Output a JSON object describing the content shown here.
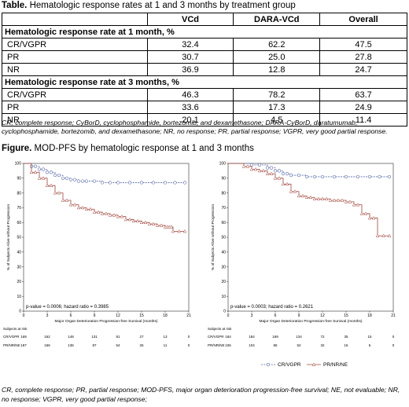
{
  "table": {
    "title_bold": "Table.",
    "title_text": " Hematologic response rates at 1 and 3 months by treatment group",
    "columns": [
      "",
      "VCd",
      "DARA-VCd",
      "Overall"
    ],
    "sections": [
      {
        "heading": "Hematologic response rate at 1 month, %",
        "rows": [
          {
            "label": "CR/VGPR",
            "vcd": "32.4",
            "dara": "62.2",
            "overall": "47.5"
          },
          {
            "label": "PR",
            "vcd": "30.7",
            "dara": "25.0",
            "overall": "27.8"
          },
          {
            "label": "NR",
            "vcd": "36.9",
            "dara": "12.8",
            "overall": "24.7"
          }
        ]
      },
      {
        "heading": "Hematologic response rate at 3 months, %",
        "rows": [
          {
            "label": "CR/VGPR",
            "vcd": "46.3",
            "dara": "78.2",
            "overall": "63.7"
          },
          {
            "label": "PR",
            "vcd": "33.6",
            "dara": "17.3",
            "overall": "24.9"
          },
          {
            "label": "NR",
            "vcd": "20.1",
            "dara": "4.5",
            "overall": "11.4"
          }
        ]
      }
    ],
    "footnote": "CR, complete response; CyBorD, cyclophosphamide, bortezomib, and dexamethasone; DARA-CyBorD, daratumumab, cyclophosphamide, bortezomib, and dexamethasone; NR, no response; PR, partial response; VGPR, very good partial response."
  },
  "figure": {
    "title_bold": "Figure.",
    "title_text": " MOD-PFS by hematologic response at 1 and 3 months",
    "footnote": "CR, complete response; PR, partial response; MOD-PFS, major organ deterioration progression-free survival; NE, not evaluable; NR, no response; VGPR, very good partial response;"
  },
  "colors": {
    "crvgpr": "#5a6aa8",
    "prnr": "#a0463c"
  },
  "chart_data": [
    {
      "type": "line",
      "title": "",
      "xlabel": "Major Organ Deterioration Progression-free Survival (months)",
      "ylabel": "% of Subjects Alive without Progression",
      "xlim": [
        0,
        21
      ],
      "ylim": [
        0,
        100
      ],
      "xticks": [
        0,
        3,
        6,
        9,
        12,
        15,
        18,
        21
      ],
      "yticks": [
        0,
        10,
        20,
        30,
        40,
        50,
        60,
        70,
        80,
        90,
        100
      ],
      "annotation": "p-value = 0.0006; hazard ratio = 0.3985",
      "series": [
        {
          "name": "CR/VGPR",
          "x": [
            0,
            1,
            2,
            3,
            4,
            5,
            6,
            7,
            8,
            10,
            12,
            15,
            18,
            20.5
          ],
          "y": [
            100,
            98,
            96,
            94,
            92,
            90,
            89,
            88,
            88,
            87,
            87,
            87,
            87,
            87
          ]
        },
        {
          "name": "PR/NR/NE",
          "x": [
            0,
            1,
            2,
            3,
            4,
            5,
            6,
            7,
            8,
            9,
            10,
            11,
            12,
            13,
            14,
            15,
            16,
            17,
            18,
            18.5,
            19,
            20.5
          ],
          "y": [
            100,
            94,
            90,
            85,
            80,
            75,
            72,
            70,
            69,
            67,
            66,
            65,
            64,
            62,
            61,
            60,
            59,
            58,
            57,
            57,
            54,
            54
          ]
        }
      ],
      "risk_table": {
        "heading": "Subjects at risk",
        "rows": [
          {
            "label": "CR/VGPR",
            "values": [
              "169",
              "162",
              "148",
              "131",
              "81",
              "27",
              "13",
              "0"
            ]
          },
          {
            "label": "PR/NR/NE",
            "values": [
              "187",
              "166",
              "136",
              "87",
              "54",
              "26",
              "11",
              "0"
            ]
          }
        ]
      }
    },
    {
      "type": "line",
      "title": "",
      "xlabel": "Major Organ Deterioration Progression-free Survival (months)",
      "ylabel": "% of Subjects Alive without Progression",
      "xlim": [
        0,
        21
      ],
      "ylim": [
        0,
        100
      ],
      "xticks": [
        0,
        3,
        6,
        9,
        12,
        15,
        18,
        21
      ],
      "yticks": [
        0,
        10,
        20,
        30,
        40,
        50,
        60,
        70,
        80,
        90,
        100
      ],
      "annotation": "p-value = 0.0003; hazard ratio = 0.2621",
      "legend": [
        "CR/VGPR",
        "PR/NR/NE"
      ],
      "series": [
        {
          "name": "CR/VGPR",
          "x": [
            0,
            3,
            5,
            6,
            7,
            8,
            10,
            12,
            15,
            18,
            20.5
          ],
          "y": [
            100,
            99,
            97,
            95,
            93,
            92,
            91,
            91,
            91,
            91,
            91
          ]
        },
        {
          "name": "PR/NR/NE",
          "x": [
            0,
            2,
            3,
            4,
            5,
            6,
            7,
            8,
            9,
            10,
            11,
            12,
            13,
            14,
            15,
            16,
            17,
            18,
            19,
            20.5
          ],
          "y": [
            100,
            98,
            96,
            95,
            93,
            90,
            86,
            81,
            78,
            77,
            76,
            76,
            75,
            75,
            74,
            72,
            66,
            63,
            51,
            51
          ]
        }
      ],
      "risk_table": {
        "heading": "Subjects at risk",
        "rows": [
          {
            "label": "CR/VGPR",
            "values": [
              "184",
              "184",
              "169",
              "134",
              "72",
              "35",
              "15",
              "0"
            ]
          },
          {
            "label": "PR/NR/NE",
            "values": [
              "106",
              "104",
              "86",
              "52",
              "32",
              "16",
              "6",
              "0"
            ]
          }
        ]
      }
    }
  ]
}
